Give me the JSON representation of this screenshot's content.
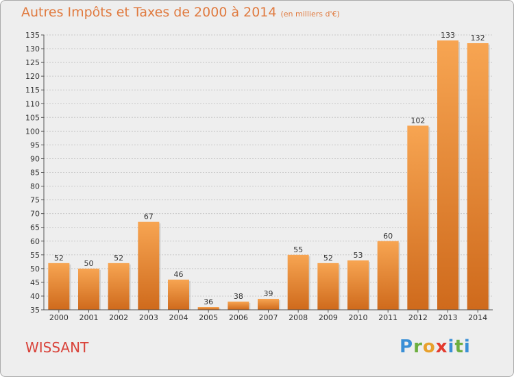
{
  "header": {
    "title": "Autres Impôts et Taxes de 2000 à 2014",
    "subtitle": "(en milliers d'€)"
  },
  "footer": {
    "city": "WISSANT",
    "logo_text": "Proxiti"
  },
  "colors": {
    "bar_light": "#f7a552",
    "bar_dark": "#cf6a1c",
    "title": "#e07a3f",
    "city": "#d9433a"
  },
  "chart_data": {
    "type": "bar",
    "categories": [
      "2000",
      "2001",
      "2002",
      "2003",
      "2004",
      "2005",
      "2006",
      "2007",
      "2008",
      "2009",
      "2010",
      "2011",
      "2012",
      "2013",
      "2014"
    ],
    "values": [
      52,
      50,
      52,
      67,
      46,
      36,
      38,
      39,
      55,
      52,
      53,
      60,
      102,
      133,
      132
    ],
    "title": "Autres Impôts et Taxes de 2000 à 2014",
    "xlabel": "",
    "ylabel": "",
    "ylim": [
      35,
      135
    ],
    "yticks": [
      35,
      40,
      45,
      50,
      55,
      60,
      65,
      70,
      75,
      80,
      85,
      90,
      95,
      100,
      105,
      110,
      115,
      120,
      125,
      130,
      135
    ],
    "grid": true,
    "data_labels": true
  }
}
